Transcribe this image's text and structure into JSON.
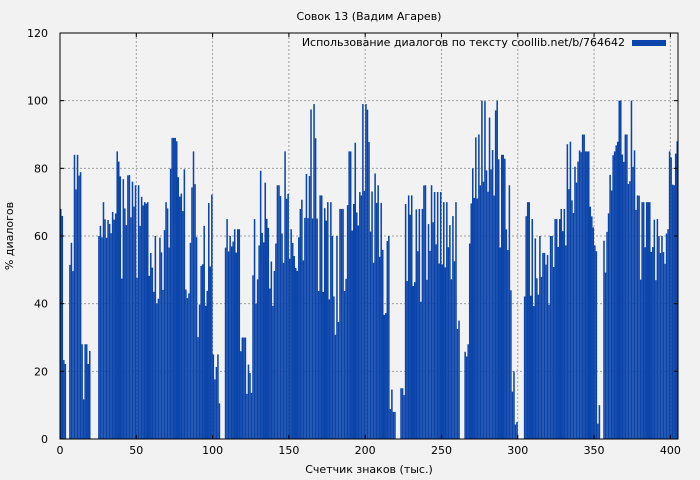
{
  "chart_data": {
    "type": "bar",
    "title": "Совок 13 (Вадим Агарев)",
    "xlabel": "Счетчик знаков (тыс.)",
    "ylabel": "% диалогов",
    "xlim": [
      0,
      405
    ],
    "ylim": [
      0,
      120
    ],
    "xticks": [
      0,
      50,
      100,
      150,
      200,
      250,
      300,
      350,
      400
    ],
    "yticks": [
      0,
      20,
      40,
      60,
      80,
      100,
      120
    ],
    "grid": true,
    "legend_position": "top-right",
    "series": [
      {
        "name": "Использование диалогов по тексту coollib.net/b/764642",
        "color": "#0b44aa",
        "bin_width": 1,
        "bins": [
          [
            0,
            2,
            58,
            68
          ],
          [
            2,
            4,
            0,
            44
          ],
          [
            4,
            6,
            0,
            0
          ],
          [
            6,
            9,
            40,
            58
          ],
          [
            9,
            14,
            45,
            84
          ],
          [
            14,
            20,
            0,
            28
          ],
          [
            20,
            25,
            0,
            0
          ],
          [
            25,
            28,
            38,
            68
          ],
          [
            28,
            32,
            40,
            70
          ],
          [
            32,
            38,
            35,
            85
          ],
          [
            38,
            44,
            18,
            82
          ],
          [
            44,
            48,
            35,
            78
          ],
          [
            48,
            54,
            25,
            75
          ],
          [
            54,
            58,
            30,
            70
          ],
          [
            58,
            62,
            20,
            55
          ],
          [
            62,
            68,
            15,
            60
          ],
          [
            68,
            72,
            20,
            70
          ],
          [
            72,
            76,
            30,
            89
          ],
          [
            76,
            82,
            35,
            88
          ],
          [
            82,
            86,
            20,
            58
          ],
          [
            86,
            90,
            15,
            85
          ],
          [
            90,
            92,
            0,
            40
          ],
          [
            92,
            96,
            0,
            63
          ],
          [
            96,
            100,
            10,
            84
          ],
          [
            100,
            105,
            0,
            25
          ],
          [
            105,
            108,
            0,
            0
          ],
          [
            108,
            113,
            10,
            65
          ],
          [
            113,
            118,
            20,
            62
          ],
          [
            118,
            122,
            0,
            30
          ],
          [
            122,
            126,
            0,
            22
          ],
          [
            126,
            131,
            15,
            65
          ],
          [
            131,
            136,
            30,
            97
          ],
          [
            136,
            140,
            20,
            63
          ],
          [
            140,
            146,
            30,
            75
          ],
          [
            146,
            150,
            15,
            85
          ],
          [
            150,
            154,
            20,
            62
          ],
          [
            154,
            158,
            10,
            68
          ],
          [
            158,
            164,
            20,
            80
          ],
          [
            164,
            168,
            35,
            99
          ],
          [
            168,
            172,
            20,
            72
          ],
          [
            172,
            178,
            15,
            70
          ],
          [
            178,
            183,
            10,
            60
          ],
          [
            183,
            188,
            20,
            68
          ],
          [
            188,
            193,
            25,
            85
          ],
          [
            193,
            198,
            25,
            93
          ],
          [
            198,
            203,
            30,
            99
          ],
          [
            203,
            208,
            20,
            80
          ],
          [
            208,
            212,
            15,
            75
          ],
          [
            212,
            216,
            10,
            60
          ],
          [
            216,
            218,
            0,
            20
          ],
          [
            218,
            220,
            0,
            8
          ],
          [
            220,
            223,
            0,
            0
          ],
          [
            223,
            226,
            0,
            15
          ],
          [
            226,
            232,
            15,
            72
          ],
          [
            232,
            238,
            20,
            68
          ],
          [
            238,
            244,
            25,
            75
          ],
          [
            244,
            250,
            25,
            73
          ],
          [
            250,
            256,
            20,
            70
          ],
          [
            256,
            260,
            15,
            70
          ],
          [
            260,
            262,
            5,
            35
          ],
          [
            262,
            265,
            0,
            0
          ],
          [
            265,
            268,
            20,
            28
          ],
          [
            268,
            272,
            25,
            80
          ],
          [
            272,
            276,
            40,
            90
          ],
          [
            276,
            280,
            55,
            100
          ],
          [
            280,
            284,
            40,
            95
          ],
          [
            284,
            288,
            40,
            100
          ],
          [
            288,
            292,
            30,
            84
          ],
          [
            292,
            296,
            20,
            75
          ],
          [
            296,
            298,
            0,
            20
          ],
          [
            298,
            300,
            0,
            5
          ],
          [
            300,
            304,
            0,
            0
          ],
          [
            304,
            308,
            15,
            70
          ],
          [
            308,
            312,
            20,
            65
          ],
          [
            312,
            316,
            25,
            60
          ],
          [
            316,
            320,
            30,
            55
          ],
          [
            320,
            324,
            25,
            60
          ],
          [
            324,
            328,
            30,
            65
          ],
          [
            328,
            332,
            35,
            68
          ],
          [
            332,
            336,
            40,
            88
          ],
          [
            336,
            340,
            45,
            82
          ],
          [
            340,
            344,
            40,
            90
          ],
          [
            344,
            348,
            35,
            85
          ],
          [
            348,
            352,
            35,
            74
          ],
          [
            352,
            354,
            0,
            10
          ],
          [
            354,
            356,
            0,
            0
          ],
          [
            356,
            360,
            30,
            70
          ],
          [
            360,
            364,
            45,
            85
          ],
          [
            364,
            368,
            50,
            100
          ],
          [
            368,
            372,
            55,
            90
          ],
          [
            372,
            376,
            50,
            100
          ],
          [
            376,
            380,
            40,
            86
          ],
          [
            380,
            384,
            30,
            70
          ],
          [
            384,
            388,
            25,
            70
          ],
          [
            388,
            392,
            30,
            65
          ],
          [
            392,
            396,
            35,
            60
          ],
          [
            396,
            399,
            25,
            62
          ],
          [
            399,
            402,
            40,
            85
          ],
          [
            402,
            405,
            45,
            88
          ]
        ]
      }
    ]
  }
}
